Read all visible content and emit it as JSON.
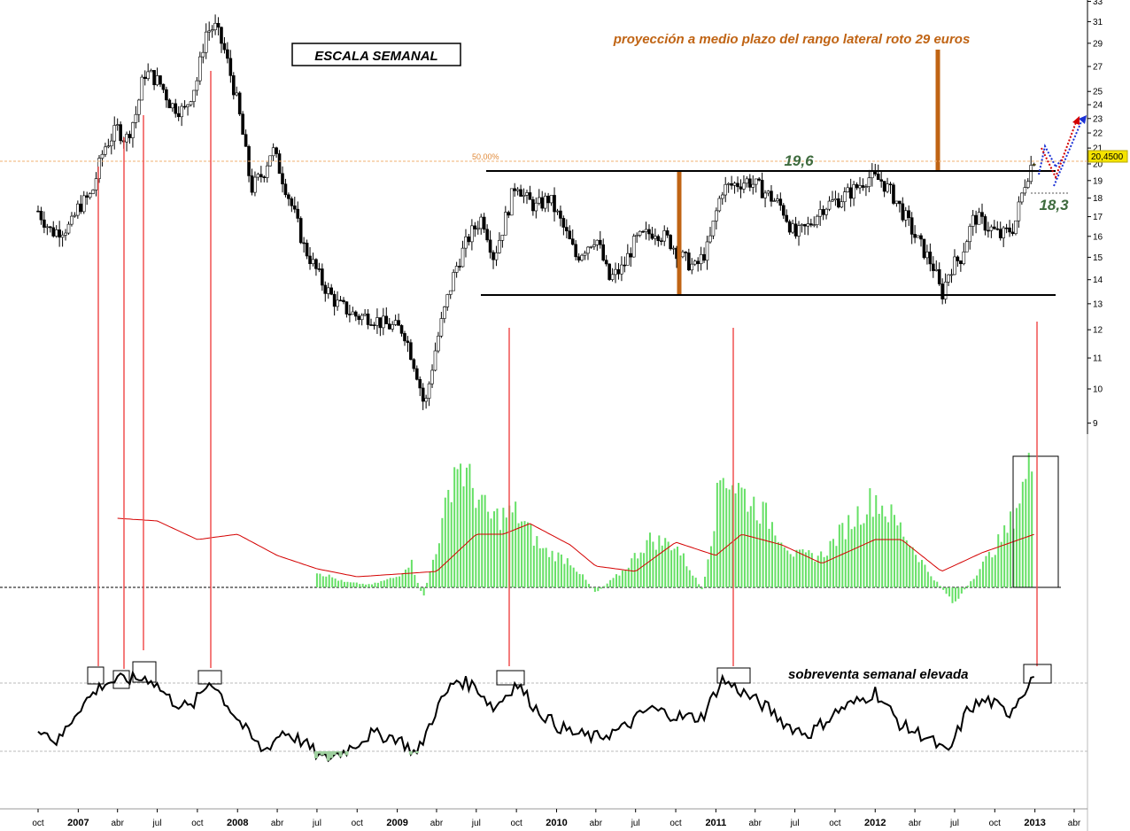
{
  "chart_data": [
    {
      "type": "candlestick",
      "title": "ESCALA SEMANAL",
      "y_scale": "log",
      "ylim": [
        8.7,
        33
      ],
      "y_ticks": [
        "9",
        "10",
        "11",
        "12",
        "13",
        "14",
        "15",
        "16",
        "17",
        "18",
        "19",
        "20",
        "21",
        "22",
        "23",
        "24",
        "25",
        "27",
        "29",
        "31",
        "33"
      ],
      "x_ticks": [
        {
          "label": "oct",
          "year": false
        },
        {
          "label": "2007",
          "year": true
        },
        {
          "label": "abr",
          "year": false
        },
        {
          "label": "jul",
          "year": false
        },
        {
          "label": "oct",
          "year": false
        },
        {
          "label": "2008",
          "year": true
        },
        {
          "label": "abr",
          "year": false
        },
        {
          "label": "jul",
          "year": false
        },
        {
          "label": "oct",
          "year": false
        },
        {
          "label": "2009",
          "year": true
        },
        {
          "label": "abr",
          "year": false
        },
        {
          "label": "jul",
          "year": false
        },
        {
          "label": "oct",
          "year": false
        },
        {
          "label": "2010",
          "year": true
        },
        {
          "label": "abr",
          "year": false
        },
        {
          "label": "jul",
          "year": false
        },
        {
          "label": "oct",
          "year": false
        },
        {
          "label": "2011",
          "year": true
        },
        {
          "label": "abr",
          "year": false
        },
        {
          "label": "jul",
          "year": false
        },
        {
          "label": "oct",
          "year": false
        },
        {
          "label": "2012",
          "year": true
        },
        {
          "label": "abr",
          "year": false
        },
        {
          "label": "jul",
          "year": false
        },
        {
          "label": "oct",
          "year": false
        },
        {
          "label": "2013",
          "year": true
        },
        {
          "label": "abr",
          "year": false
        }
      ],
      "close_path": [
        [
          "2006-10-01",
          17.3
        ],
        [
          "2006-11-01",
          16.2
        ],
        [
          "2006-12-15",
          16.5
        ],
        [
          "2007-01-01",
          17.5
        ],
        [
          "2007-02-01",
          18.2
        ],
        [
          "2007-03-01",
          21.0
        ],
        [
          "2007-04-01",
          22.3
        ],
        [
          "2007-04-20",
          21.5
        ],
        [
          "2007-05-15",
          23.5
        ],
        [
          "2007-06-01",
          26.5
        ],
        [
          "2007-06-20",
          26.2
        ],
        [
          "2007-07-10",
          25.5
        ],
        [
          "2007-08-01",
          24.0
        ],
        [
          "2007-09-01",
          23.5
        ],
        [
          "2007-10-01",
          26.0
        ],
        [
          "2007-10-20",
          30.0
        ],
        [
          "2007-11-10",
          30.5
        ],
        [
          "2007-12-01",
          28.5
        ],
        [
          "2008-01-01",
          24.0
        ],
        [
          "2008-02-01",
          18.5
        ],
        [
          "2008-03-01",
          19.5
        ],
        [
          "2008-03-20",
          21.0
        ],
        [
          "2008-04-15",
          19.0
        ],
        [
          "2008-06-01",
          15.5
        ],
        [
          "2008-07-15",
          13.8
        ],
        [
          "2008-08-15",
          13.0
        ],
        [
          "2008-10-01",
          12.5
        ],
        [
          "2008-11-01",
          12.5
        ],
        [
          "2008-12-01",
          12.2
        ],
        [
          "2009-01-15",
          12.0
        ],
        [
          "2009-02-15",
          10.5
        ],
        [
          "2009-03-05",
          9.4
        ],
        [
          "2009-04-01",
          11.5
        ],
        [
          "2009-05-15",
          14.5
        ],
        [
          "2009-06-15",
          16.0
        ],
        [
          "2009-07-15",
          17.0
        ],
        [
          "2009-08-10",
          15.0
        ],
        [
          "2009-09-01",
          16.5
        ],
        [
          "2009-10-01",
          19.0
        ],
        [
          "2009-10-20",
          18.0
        ],
        [
          "2009-11-15",
          17.5
        ],
        [
          "2009-12-15",
          18.0
        ],
        [
          "2010-01-15",
          16.5
        ],
        [
          "2010-02-15",
          15.0
        ],
        [
          "2010-04-01",
          16.0
        ],
        [
          "2010-05-01",
          14.0
        ],
        [
          "2010-06-01",
          14.5
        ],
        [
          "2010-07-01",
          15.8
        ],
        [
          "2010-08-15",
          16.3
        ],
        [
          "2010-09-15",
          15.8
        ],
        [
          "2010-10-15",
          15.0
        ],
        [
          "2010-11-15",
          14.5
        ],
        [
          "2010-12-15",
          15.5
        ],
        [
          "2011-01-15",
          18.5
        ],
        [
          "2011-02-15",
          18.8
        ],
        [
          "2011-03-15",
          19.0
        ],
        [
          "2011-04-15",
          18.5
        ],
        [
          "2011-06-01",
          17.5
        ],
        [
          "2011-07-01",
          16.0
        ],
        [
          "2011-08-01",
          16.5
        ],
        [
          "2011-09-01",
          17.5
        ],
        [
          "2011-10-15",
          18.0
        ],
        [
          "2011-11-15",
          18.5
        ],
        [
          "2011-12-15",
          19.2
        ],
        [
          "2012-01-15",
          19.0
        ],
        [
          "2012-02-15",
          18.0
        ],
        [
          "2012-04-01",
          16.0
        ],
        [
          "2012-05-15",
          14.5
        ],
        [
          "2012-06-01",
          13.3
        ],
        [
          "2012-06-20",
          14.5
        ],
        [
          "2012-07-15",
          15.0
        ],
        [
          "2012-08-15",
          17.0
        ],
        [
          "2012-09-15",
          16.5
        ],
        [
          "2012-10-15",
          16.0
        ],
        [
          "2012-11-15",
          16.5
        ],
        [
          "2012-12-10",
          19.0
        ],
        [
          "2012-12-31",
          20.45
        ]
      ],
      "resistance_level": "19,6",
      "support_level": 13.4,
      "pullback_level": "18,3",
      "fib_label": "50,00%",
      "last_price_label": "20,4500",
      "projection_label": "proyección a medio plazo del rango lateral roto 29 euros"
    },
    {
      "type": "bar",
      "panel": "histogram indicator with moving average",
      "series": [
        {
          "values_path": [
            [
              "2008-07-01",
              0.3
            ],
            [
              "2008-09-01",
              0.1
            ],
            [
              "2008-11-01",
              0.05
            ],
            [
              "2009-01-01",
              0.2
            ],
            [
              "2009-02-01",
              0.5
            ],
            [
              "2009-03-01",
              -0.2
            ],
            [
              "2009-04-15",
              1.2
            ],
            [
              "2009-05-15",
              2.4
            ],
            [
              "2009-06-15",
              2.0
            ],
            [
              "2009-08-01",
              1.3
            ],
            [
              "2009-10-01",
              1.4
            ],
            [
              "2009-12-01",
              0.7
            ],
            [
              "2010-02-01",
              0.5
            ],
            [
              "2010-04-01",
              -0.1
            ],
            [
              "2010-06-01",
              0.3
            ],
            [
              "2010-08-01",
              0.9
            ],
            [
              "2010-10-01",
              0.8
            ],
            [
              "2010-12-01",
              -0.05
            ],
            [
              "2011-01-15",
              2.2
            ],
            [
              "2011-03-01",
              1.8
            ],
            [
              "2011-05-01",
              1.3
            ],
            [
              "2011-07-01",
              0.6
            ],
            [
              "2011-09-01",
              0.6
            ],
            [
              "2011-11-01",
              1.2
            ],
            [
              "2012-01-01",
              1.7
            ],
            [
              "2012-03-01",
              1.1
            ],
            [
              "2012-05-01",
              0.3
            ],
            [
              "2012-07-01",
              -0.3
            ],
            [
              "2012-09-01",
              0.4
            ],
            [
              "2012-11-01",
              1.1
            ],
            [
              "2012-12-31",
              2.5
            ]
          ]
        },
        {
          "name": "",
          "values_path": [
            [
              "2007-04-01",
              1.3
            ],
            [
              "2007-07-01",
              1.25
            ],
            [
              "2007-10-01",
              0.9
            ],
            [
              "2008-01-01",
              1.0
            ],
            [
              "2008-04-01",
              0.6
            ],
            [
              "2008-07-01",
              0.35
            ],
            [
              "2008-10-01",
              0.2
            ],
            [
              "2009-01-01",
              0.25
            ],
            [
              "2009-04-01",
              0.3
            ],
            [
              "2009-07-01",
              1.0
            ],
            [
              "2009-09-01",
              1.0
            ],
            [
              "2009-11-01",
              1.2
            ],
            [
              "2010-02-01",
              0.8
            ],
            [
              "2010-04-01",
              0.4
            ],
            [
              "2010-07-01",
              0.3
            ],
            [
              "2010-10-01",
              0.85
            ],
            [
              "2011-01-01",
              0.6
            ],
            [
              "2011-03-01",
              1.0
            ],
            [
              "2011-06-01",
              0.8
            ],
            [
              "2011-09-01",
              0.45
            ],
            [
              "2012-01-01",
              0.9
            ],
            [
              "2012-03-01",
              0.9
            ],
            [
              "2012-06-01",
              0.3
            ],
            [
              "2012-09-01",
              0.65
            ],
            [
              "2012-12-31",
              1.0
            ]
          ]
        }
      ]
    },
    {
      "type": "line",
      "panel": "oscillator",
      "annotation": "sobreventa semanal elevada",
      "values_path": [
        [
          "2006-10-01",
          45
        ],
        [
          "2006-11-15",
          35
        ],
        [
          "2007-01-01",
          55
        ],
        [
          "2007-03-01",
          70
        ],
        [
          "2007-04-15",
          72
        ],
        [
          "2007-06-15",
          73
        ],
        [
          "2007-08-01",
          60
        ],
        [
          "2007-09-15",
          55
        ],
        [
          "2007-11-01",
          72
        ],
        [
          "2007-12-15",
          55
        ],
        [
          "2008-02-01",
          38
        ],
        [
          "2008-03-01",
          30
        ],
        [
          "2008-04-15",
          42
        ],
        [
          "2008-06-01",
          35
        ],
        [
          "2008-07-15",
          25
        ],
        [
          "2008-09-01",
          30
        ],
        [
          "2008-11-01",
          40
        ],
        [
          "2009-01-01",
          38
        ],
        [
          "2009-02-15",
          28
        ],
        [
          "2009-04-01",
          55
        ],
        [
          "2009-05-15",
          72
        ],
        [
          "2009-07-01",
          68
        ],
        [
          "2009-08-10",
          55
        ],
        [
          "2009-10-01",
          70
        ],
        [
          "2009-11-15",
          55
        ],
        [
          "2010-01-01",
          45
        ],
        [
          "2010-02-15",
          40
        ],
        [
          "2010-04-01",
          38
        ],
        [
          "2010-06-01",
          43
        ],
        [
          "2010-08-01",
          55
        ],
        [
          "2010-10-15",
          50
        ],
        [
          "2010-12-01",
          50
        ],
        [
          "2011-01-15",
          72
        ],
        [
          "2011-03-01",
          65
        ],
        [
          "2011-05-01",
          55
        ],
        [
          "2011-06-15",
          45
        ],
        [
          "2011-08-01",
          40
        ],
        [
          "2011-10-15",
          55
        ],
        [
          "2011-12-01",
          60
        ],
        [
          "2012-01-01",
          65
        ],
        [
          "2012-03-01",
          45
        ],
        [
          "2012-05-01",
          38
        ],
        [
          "2012-06-15",
          28
        ],
        [
          "2012-08-01",
          55
        ],
        [
          "2012-09-15",
          60
        ],
        [
          "2012-11-01",
          52
        ],
        [
          "2012-12-31",
          75
        ]
      ]
    }
  ]
}
